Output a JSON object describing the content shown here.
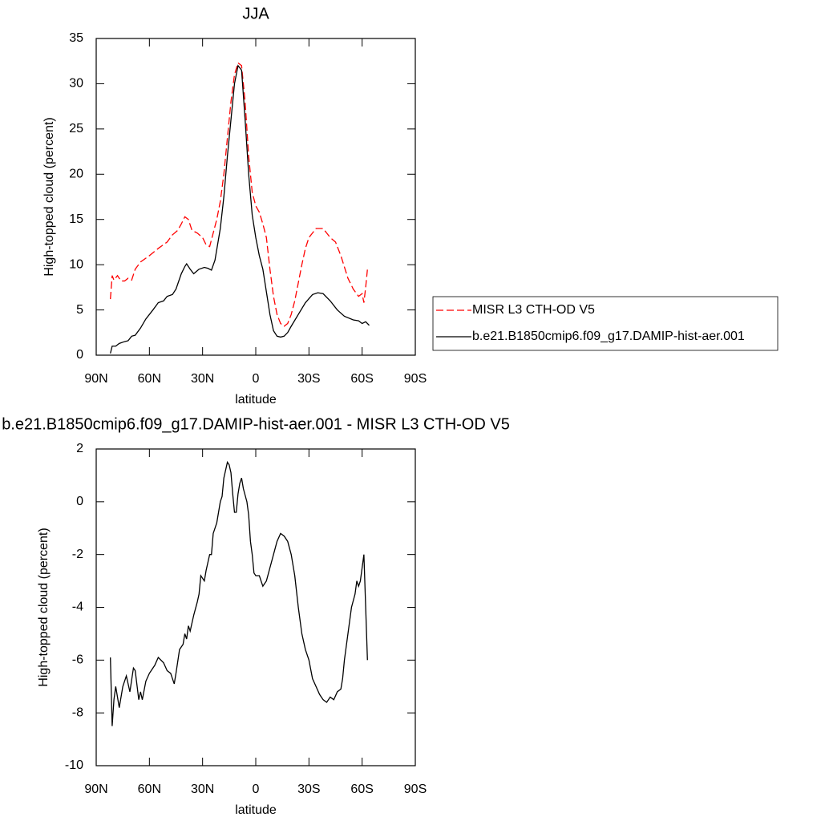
{
  "chart_data": [
    {
      "type": "line",
      "title": "JJA",
      "ylabel": "High-topped cloud (percent)",
      "xlabel": "latitude",
      "xlim": [
        90,
        -90
      ],
      "ylim": [
        0,
        35
      ],
      "xticks": [
        {
          "value": 90,
          "label": "90N"
        },
        {
          "value": 60,
          "label": "60N"
        },
        {
          "value": 30,
          "label": "30N"
        },
        0,
        {
          "value": -30,
          "label": "30S"
        },
        {
          "value": -60,
          "label": "60S"
        },
        {
          "value": -90,
          "label": "90S"
        }
      ],
      "yticks": [
        0,
        5,
        10,
        15,
        20,
        25,
        30,
        35
      ],
      "legend": "right",
      "series": [
        {
          "name": "MISR L3 CTH-OD V5",
          "color": "#ff0000",
          "dash": true,
          "x": [
            82,
            81,
            80,
            78,
            76,
            74,
            72,
            70,
            68,
            65,
            60,
            55,
            50,
            47,
            44,
            42,
            40,
            38,
            36,
            33,
            30,
            28,
            26,
            24,
            22,
            20,
            18,
            16,
            14,
            12,
            10,
            8,
            6,
            4,
            2,
            0,
            -2,
            -4,
            -6,
            -8,
            -10,
            -12,
            -14,
            -16,
            -18,
            -20,
            -22,
            -24,
            -26,
            -28,
            -30,
            -32,
            -34,
            -38,
            -40,
            -42,
            -45,
            -48,
            -52,
            -55,
            -58,
            -60,
            -61,
            -62,
            -63
          ],
          "values": [
            6.2,
            8.8,
            8.3,
            8.8,
            8.2,
            8.2,
            8.5,
            8.3,
            9.5,
            10.3,
            11.0,
            11.8,
            12.5,
            13.3,
            13.8,
            14.5,
            15.3,
            15.0,
            13.8,
            13.5,
            13.0,
            12.2,
            12.0,
            13.5,
            15.0,
            17.0,
            20.0,
            24.0,
            28.0,
            31.0,
            32.3,
            32.0,
            28.0,
            22.0,
            18.0,
            16.5,
            15.8,
            14.5,
            13.0,
            9.5,
            6.5,
            4.5,
            3.5,
            3.2,
            3.5,
            4.5,
            6.0,
            8.0,
            10.0,
            11.8,
            13.0,
            13.5,
            14.0,
            14.0,
            13.5,
            13.0,
            12.5,
            11.0,
            8.5,
            7.3,
            6.5,
            6.8,
            5.8,
            7.5,
            9.5
          ]
        },
        {
          "name": "b.e21.B1850cmip6.f09_g17.DAMIP-hist-aer.001",
          "color": "#000000",
          "dash": false,
          "x": [
            82,
            81,
            79,
            77,
            74,
            72,
            70,
            68,
            65,
            62,
            58,
            55,
            52,
            50,
            47,
            45,
            42,
            40,
            39,
            37,
            35,
            32,
            29,
            27,
            25,
            23,
            20,
            18,
            16,
            14,
            12,
            10,
            8,
            6,
            4,
            2,
            0,
            -2,
            -4,
            -6,
            -8,
            -10,
            -12,
            -14,
            -16,
            -18,
            -20,
            -24,
            -28,
            -32,
            -35,
            -38,
            -42,
            -46,
            -50,
            -55,
            -58,
            -60,
            -62,
            -64
          ],
          "values": [
            0.2,
            1.0,
            1.0,
            1.3,
            1.5,
            1.6,
            2.1,
            2.2,
            3.0,
            4.0,
            5.0,
            5.8,
            6.0,
            6.5,
            6.7,
            7.3,
            9.0,
            9.8,
            10.1,
            9.5,
            9.0,
            9.5,
            9.7,
            9.6,
            9.4,
            10.5,
            14.0,
            17.5,
            22.0,
            26.0,
            30.0,
            32.0,
            31.5,
            26.0,
            20.0,
            15.5,
            13.0,
            11.0,
            9.5,
            7.0,
            4.5,
            2.7,
            2.1,
            2.0,
            2.1,
            2.5,
            3.2,
            4.5,
            5.8,
            6.7,
            6.9,
            6.8,
            6.0,
            5.0,
            4.3,
            3.9,
            3.8,
            3.5,
            3.7,
            3.3
          ]
        }
      ]
    },
    {
      "type": "line",
      "title": "b.e21.B1850cmip6.f09_g17.DAMIP-hist-aer.001 - MISR L3 CTH-OD V5",
      "ylabel": "High-topped cloud (percent)",
      "xlabel": "latitude",
      "xlim": [
        90,
        -90
      ],
      "ylim": [
        -10,
        2
      ],
      "xticks": [
        {
          "value": 90,
          "label": "90N"
        },
        {
          "value": 60,
          "label": "60N"
        },
        {
          "value": 30,
          "label": "30N"
        },
        0,
        {
          "value": -30,
          "label": "30S"
        },
        {
          "value": -60,
          "label": "60S"
        },
        {
          "value": -90,
          "label": "90S"
        }
      ],
      "yticks": [
        -10,
        -8,
        -6,
        -4,
        -2,
        0,
        2
      ],
      "series": [
        {
          "color": "#000000",
          "dash": false,
          "x": [
            82,
            81,
            80,
            79,
            77,
            75,
            73,
            71,
            69,
            68,
            66,
            65,
            64,
            62,
            60,
            57,
            55,
            52,
            50,
            48,
            46,
            45,
            43,
            41,
            40,
            39,
            38,
            37,
            35,
            33,
            32,
            31,
            29,
            28,
            26,
            25,
            24,
            22,
            20,
            19,
            18,
            17,
            16,
            15,
            14,
            13,
            12,
            11,
            10,
            9,
            8,
            7,
            5,
            4,
            3,
            2,
            1,
            0,
            -2,
            -4,
            -6,
            -8,
            -10,
            -12,
            -14,
            -16,
            -18,
            -20,
            -22,
            -24,
            -26,
            -28,
            -30,
            -32,
            -34,
            -36,
            -38,
            -40,
            -42,
            -44,
            -46,
            -48,
            -49,
            -50,
            -52,
            -54,
            -56,
            -57,
            -58,
            -59,
            -60,
            -61,
            -63
          ],
          "values": [
            -5.9,
            -8.5,
            -7.5,
            -7.0,
            -7.8,
            -7.0,
            -6.6,
            -7.2,
            -6.3,
            -6.4,
            -7.5,
            -7.2,
            -7.5,
            -6.8,
            -6.5,
            -6.2,
            -5.9,
            -6.1,
            -6.4,
            -6.5,
            -6.9,
            -6.5,
            -5.6,
            -5.4,
            -5.0,
            -5.2,
            -4.7,
            -4.9,
            -4.3,
            -3.8,
            -3.5,
            -2.8,
            -3.0,
            -2.6,
            -2.0,
            -2.0,
            -1.2,
            -0.8,
            0.0,
            0.2,
            0.9,
            1.2,
            1.5,
            1.4,
            1.1,
            0.3,
            -0.4,
            -0.4,
            0.3,
            0.7,
            0.9,
            0.5,
            0.0,
            -0.5,
            -1.5,
            -2.0,
            -2.7,
            -2.8,
            -2.8,
            -3.2,
            -3.0,
            -2.5,
            -2.0,
            -1.5,
            -1.2,
            -1.3,
            -1.5,
            -2.0,
            -2.8,
            -4.0,
            -5.0,
            -5.6,
            -6.0,
            -6.7,
            -7.0,
            -7.3,
            -7.5,
            -7.6,
            -7.4,
            -7.5,
            -7.2,
            -7.1,
            -6.7,
            -6.0,
            -5.0,
            -4.0,
            -3.5,
            -3.0,
            -3.2,
            -3.0,
            -2.5,
            -2.0,
            -6.0
          ]
        }
      ]
    }
  ]
}
